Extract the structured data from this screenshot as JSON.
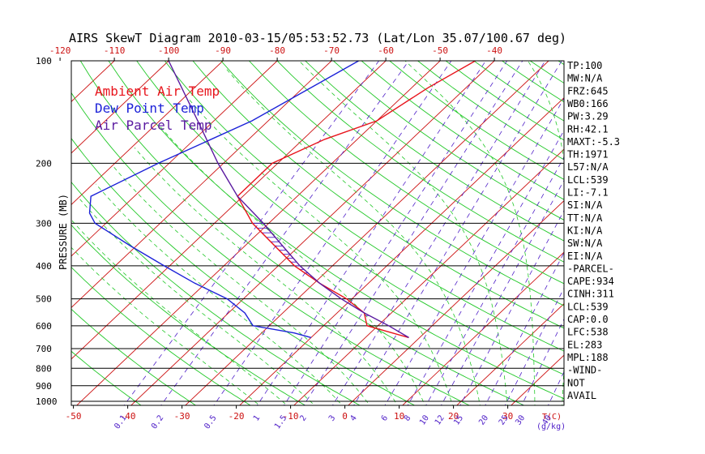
{
  "chart_data": {
    "type": "line",
    "title": "AIRS SkewT Diagram 2010-03-15/05:53:52.73 (Lat/Lon 35.07/100.67 deg)",
    "ylabel": "PRESSURE (MB)",
    "xlabel": "T(C)",
    "mixing_ratio_unit": "(g/kg)",
    "pressure_ticks": [
      "100",
      "200",
      "300",
      "400",
      "500",
      "600",
      "700",
      "800",
      "900",
      "1000"
    ],
    "top_temperature_ticks": [
      "-120",
      "-110",
      "-100",
      "-90",
      "-80",
      "-70",
      "-60",
      "-50",
      "-40"
    ],
    "bottom_temperature_ticks": [
      "-50",
      "-40",
      "-30",
      "-20",
      "-10",
      "0",
      "10",
      "20",
      "30"
    ],
    "mixing_ratio_labels": [
      "0.1",
      "0.2",
      "0.5",
      "1",
      "1.5",
      "2",
      "3",
      "4",
      "6",
      "8",
      "10",
      "12",
      "15",
      "20",
      "25",
      "30",
      "40"
    ],
    "legend": [
      "Ambient Air Temp",
      "Dew Point Temp",
      "Air Parcel Temp"
    ],
    "colors": {
      "ambient": "#e8141c",
      "dewpoint": "#1c22d8",
      "parcel": "#5a1aa0",
      "isotherm": "#cc1010",
      "dry_adiabat": "#22c828",
      "mixing_ratio": "#5020c8",
      "pressure_line": "#000000",
      "text": "#000000"
    },
    "series": [
      {
        "name": "Ambient Air Temp",
        "points": [
          [
            100,
            -43.5
          ],
          [
            120,
            -47
          ],
          [
            150,
            -50
          ],
          [
            170,
            -56
          ],
          [
            200,
            -61
          ],
          [
            250,
            -61
          ],
          [
            300,
            -53
          ],
          [
            400,
            -37
          ],
          [
            450,
            -29
          ],
          [
            500,
            -21
          ],
          [
            550,
            -15
          ],
          [
            600,
            -12
          ],
          [
            650,
            -2
          ]
        ]
      },
      {
        "name": "Dew Point Temp",
        "points": [
          [
            100,
            -65
          ],
          [
            150,
            -73
          ],
          [
            200,
            -82
          ],
          [
            250,
            -88
          ],
          [
            280,
            -85
          ],
          [
            300,
            -82
          ],
          [
            350,
            -71
          ],
          [
            400,
            -61
          ],
          [
            450,
            -52
          ],
          [
            500,
            -43
          ],
          [
            550,
            -37
          ],
          [
            600,
            -33
          ],
          [
            630,
            -24
          ],
          [
            650,
            -20
          ]
        ]
      },
      {
        "name": "Air Parcel Temp",
        "points": [
          [
            100,
            -100
          ],
          [
            150,
            -83
          ],
          [
            200,
            -71
          ],
          [
            250,
            -61
          ],
          [
            300,
            -51
          ],
          [
            350,
            -43
          ],
          [
            400,
            -36
          ],
          [
            450,
            -29
          ],
          [
            500,
            -22
          ],
          [
            550,
            -15
          ],
          [
            600,
            -8
          ],
          [
            650,
            -2
          ]
        ]
      }
    ],
    "stats": [
      "TP:100",
      "MW:N/A",
      "FRZ:645",
      "WB0:166",
      "PW:3.29",
      "RH:42.1",
      "MAXT:-5.3",
      "TH:1971",
      "L57:N/A",
      "LCL:539",
      "LI:-7.1",
      "SI:N/A",
      "TT:N/A",
      "KI:N/A",
      "SW:N/A",
      "EI:N/A",
      "-PARCEL-",
      "CAPE:934",
      "CINH:311",
      "LCL:539",
      "CAP:0.0",
      "LFC:538",
      "EL:283",
      "MPL:188",
      "-WIND-",
      "NOT",
      "AVAIL"
    ]
  }
}
